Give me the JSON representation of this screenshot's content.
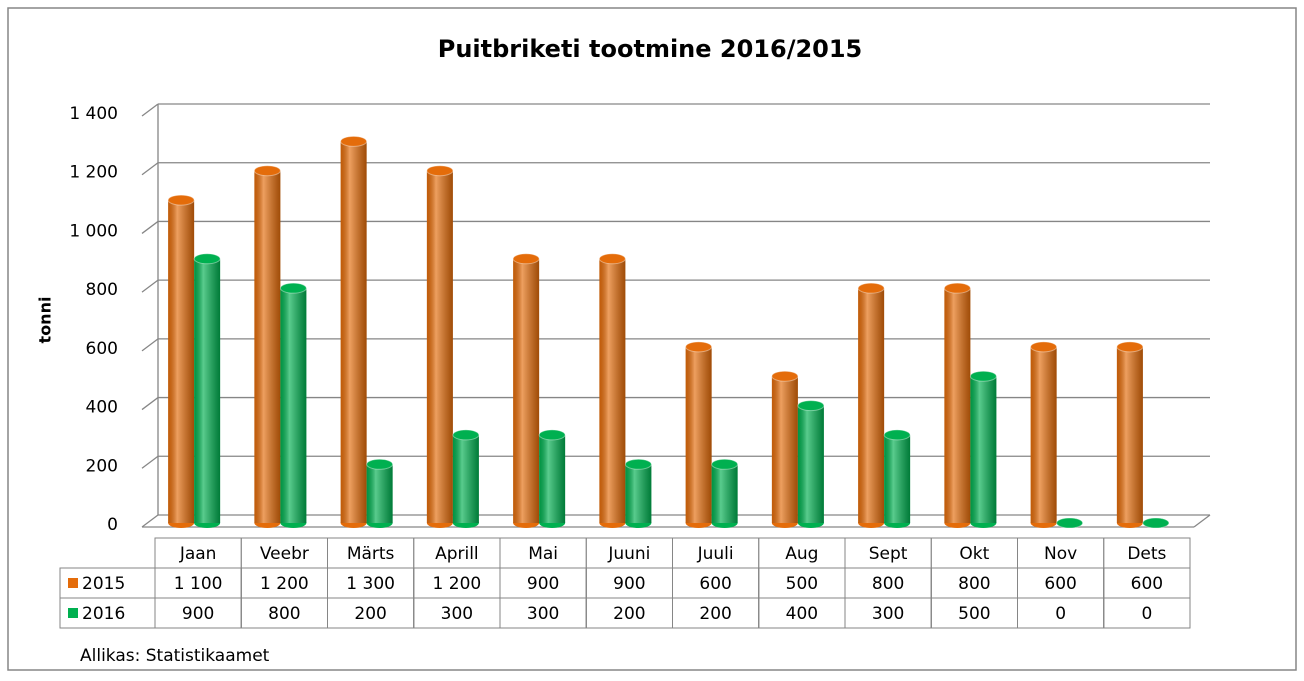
{
  "chart_data": {
    "type": "bar3d",
    "title": "Puitbriketi tootmine 2016/2015",
    "ylabel": "tonni",
    "source": "Allikas: Statistikaamet",
    "categories": [
      "Jaan",
      "Veebr",
      "Märts",
      "Aprill",
      "Mai",
      "Juuni",
      "Juuli",
      "Aug",
      "Sept",
      "Okt",
      "Nov",
      "Dets"
    ],
    "series": [
      {
        "name": "2015",
        "color": "#e46c0a",
        "values": [
          1100,
          1200,
          1300,
          1200,
          900,
          900,
          600,
          500,
          800,
          800,
          600,
          600
        ],
        "value_labels": [
          "1 100",
          "1 200",
          "1 300",
          "1 200",
          "900",
          "900",
          "600",
          "500",
          "800",
          "800",
          "600",
          "600"
        ]
      },
      {
        "name": "2016",
        "color": "#00b050",
        "values": [
          900,
          800,
          200,
          300,
          300,
          200,
          200,
          400,
          300,
          500,
          0,
          0
        ]
      }
    ],
    "ylim": [
      0,
      1400
    ],
    "yticks": [
      0,
      200,
      400,
      600,
      800,
      {
        "value": 1000,
        "label": "1 000"
      },
      {
        "value": 1200,
        "label": "1 200"
      },
      {
        "value": 1400,
        "label": "1 400"
      }
    ],
    "grid": true
  }
}
